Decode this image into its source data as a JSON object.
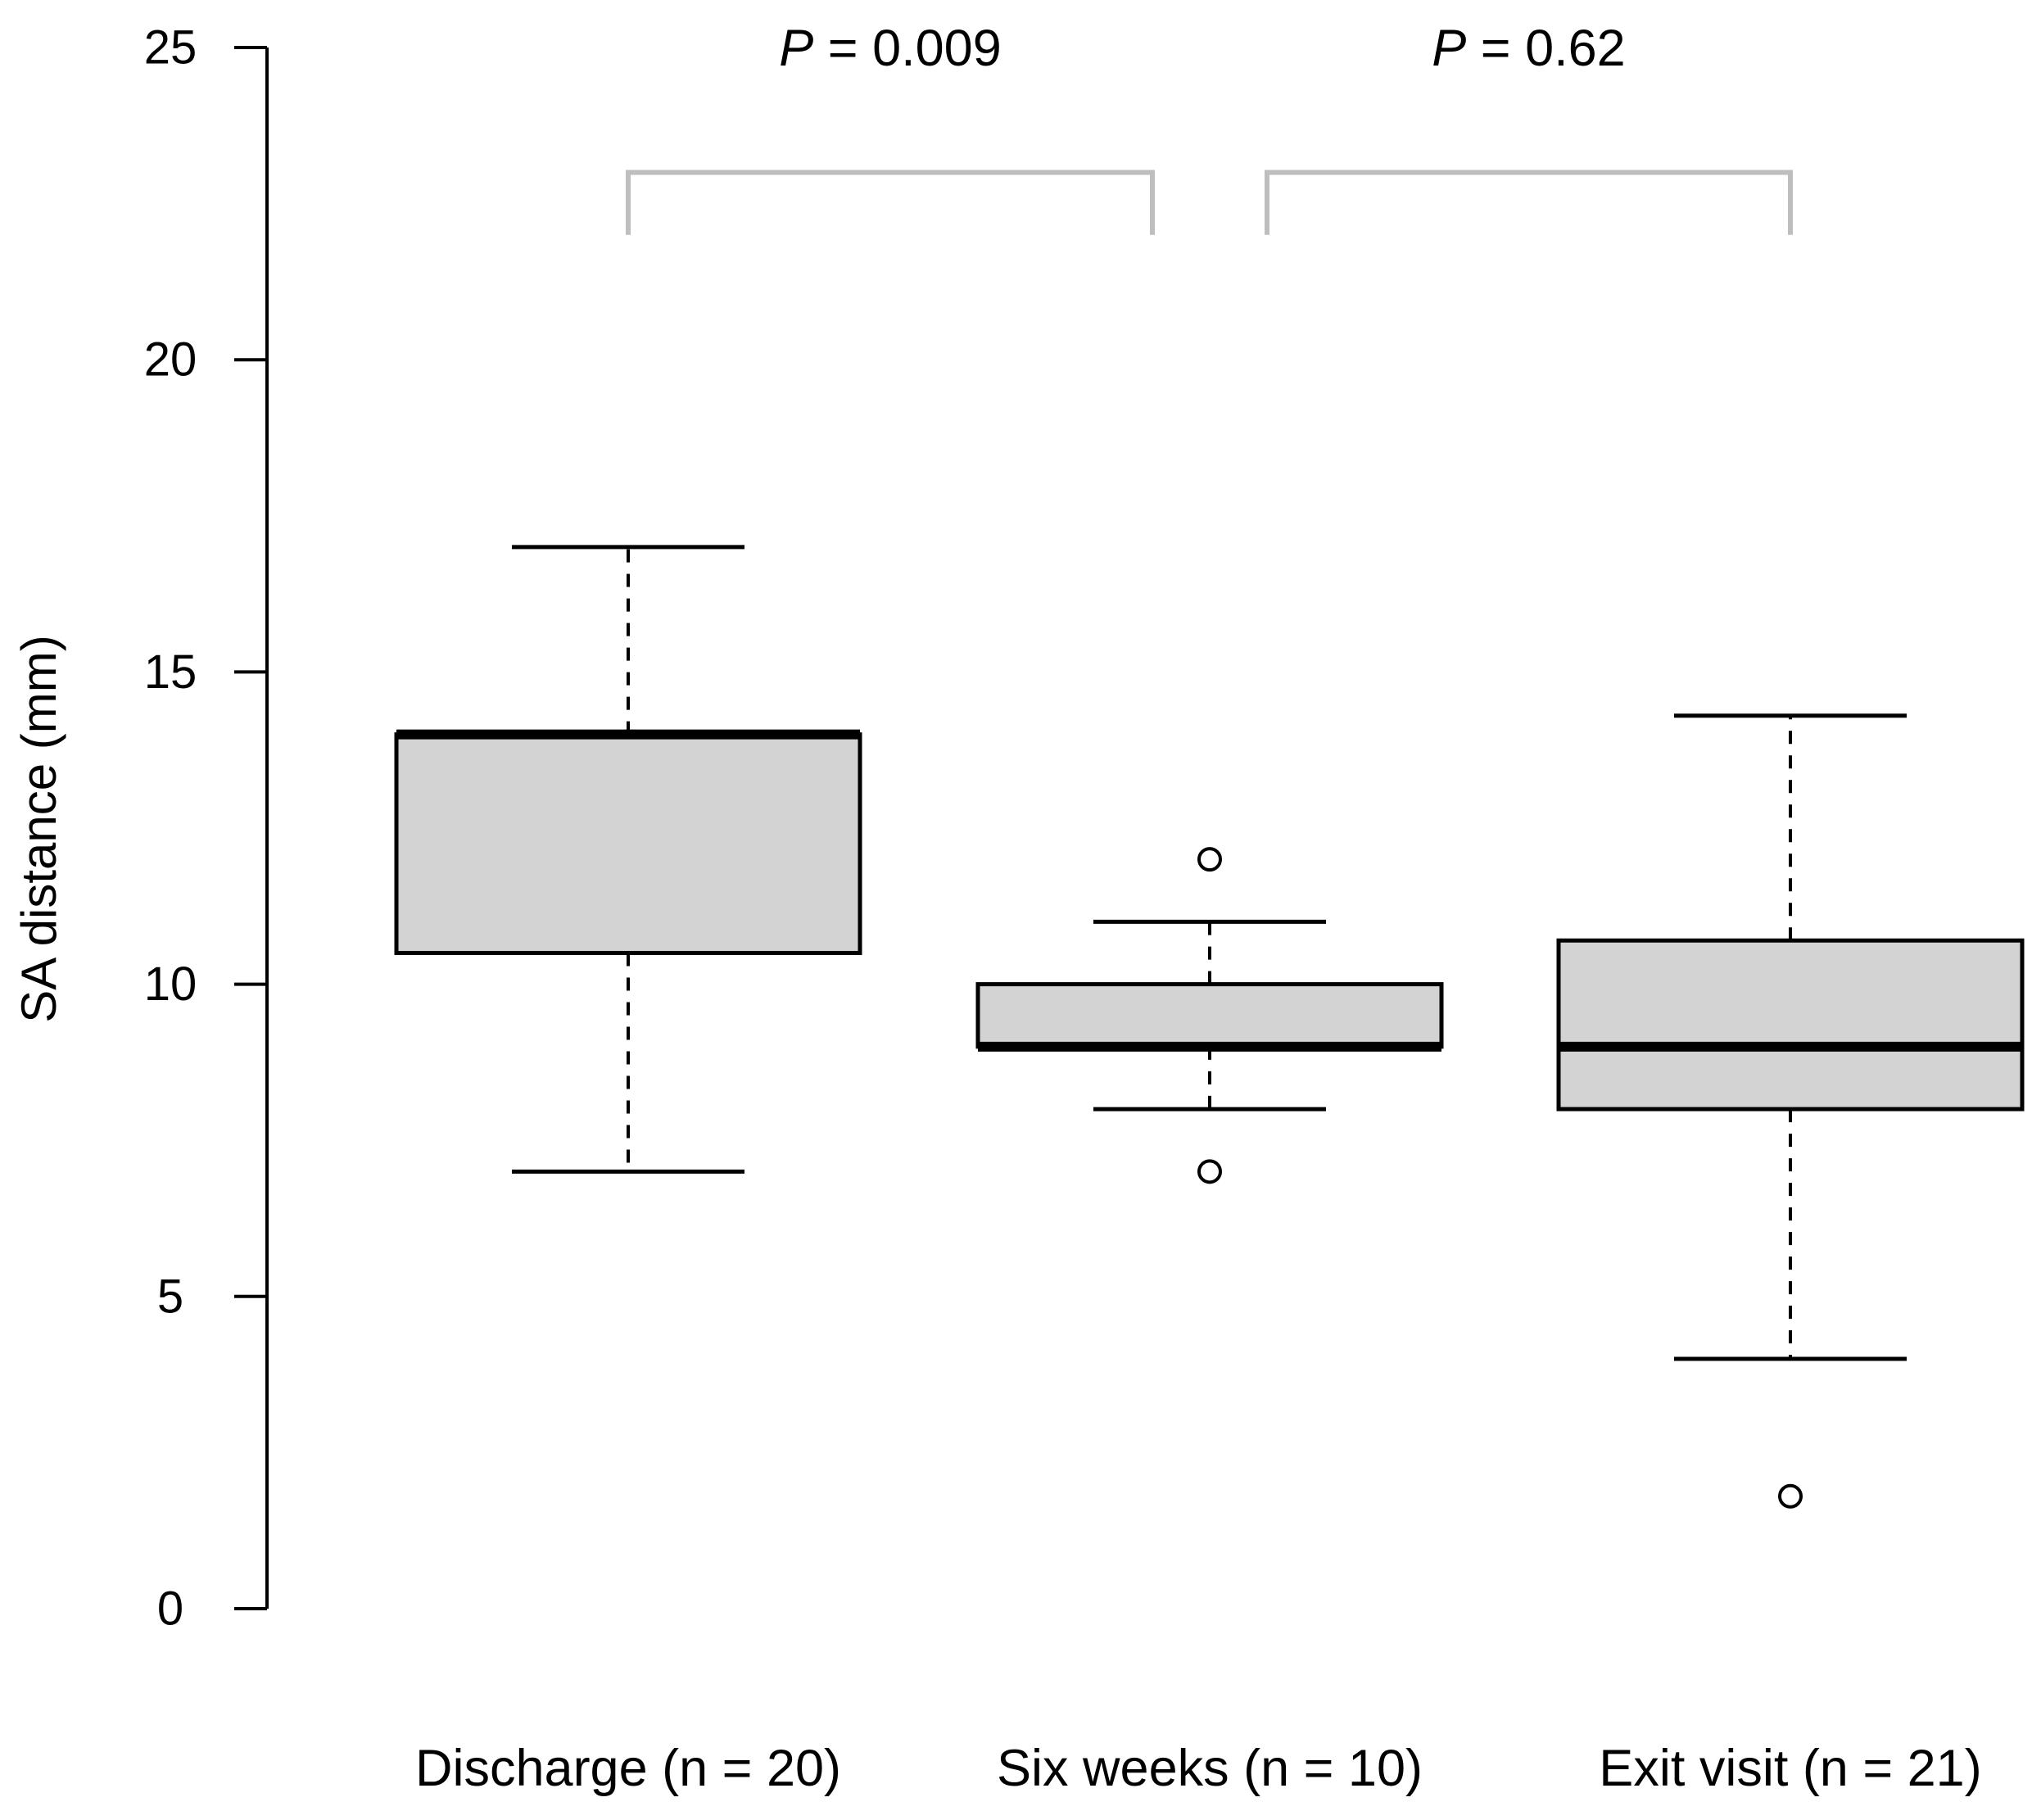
{
  "chart_data": {
    "type": "box",
    "title": "",
    "xlabel": "",
    "ylabel": "SA distance (mm)",
    "ylim": [
      0,
      25
    ],
    "yticks": [
      0,
      5,
      10,
      15,
      20,
      25
    ],
    "categories": [
      "Discharge (n = 20)",
      "Six weeks (n = 10)",
      "Exit visit (n = 21)"
    ],
    "boxes": [
      {
        "category": "Discharge (n = 20)",
        "whisker_low": 7,
        "q1": 10.5,
        "median": 14,
        "q3": 14,
        "whisker_high": 17,
        "outliers": []
      },
      {
        "category": "Six weeks (n = 10)",
        "whisker_low": 8,
        "q1": 9,
        "median": 9,
        "q3": 10,
        "whisker_high": 11,
        "outliers": [
          12,
          7
        ]
      },
      {
        "category": "Exit visit (n = 21)",
        "whisker_low": 4,
        "q1": 8,
        "median": 9,
        "q3": 10.7,
        "whisker_high": 14.3,
        "outliers": [
          1.8
        ]
      }
    ],
    "comparisons": [
      {
        "from": 0,
        "to": 1,
        "p_symbol": "P",
        "p_text": " = 0.009",
        "bracket_y": 23,
        "bracket_drop": 22
      },
      {
        "from": 1,
        "to": 2,
        "p_symbol": "P",
        "p_text": " = 0.62",
        "bracket_y": 23,
        "bracket_drop": 22
      }
    ],
    "colors": {
      "box_fill": "#d3d3d3",
      "stroke": "#000000",
      "bracket": "#bebebe"
    }
  }
}
